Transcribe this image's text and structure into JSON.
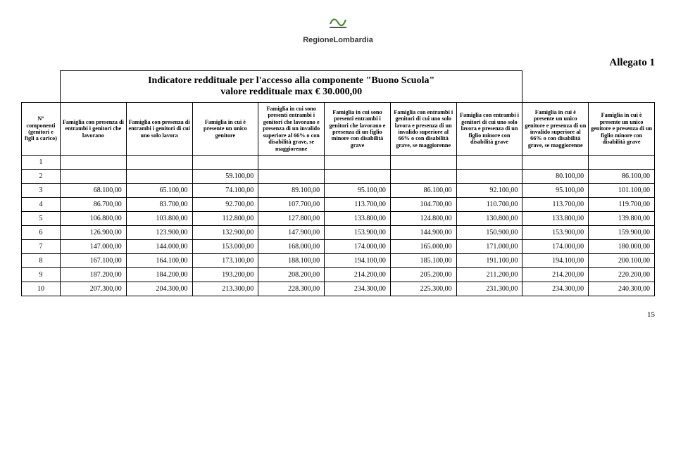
{
  "logo_text": "RegioneLombardia",
  "allegato": "Allegato 1",
  "title_line1": "Indicatore reddituale per l'accesso alla componente \"Buono Scuola\"",
  "title_line2": "valore reddituale max € 30.000,00",
  "page_number": "15",
  "headers": [
    "N° componenti (genitori e figli a carico)",
    "Famiglia con presenza di entrambi i genitori che lavorano",
    "Famiglia con presenza di entrambi i genitori di cui uno solo lavora",
    "Famiglia in cui è presente un unico genitore",
    "Famiglia in cui sono presenti entrambi i genitori che lavorano e presenza di un invalido superiore al 66% o con disabilità grave, se maggiorenne",
    "Famiglia in cui sono presenti entrambi i genitori che lavorano e presenza di un figlio minore con disabilità grave",
    "Famiglia con entrambi i genitori di cui uno solo lavora e presenza di un invalido superiore al 66% o con disabilità grave, se maggiorenne",
    "Famiglia con entrambi i genitori di cui uno solo lavora e presenza di un figlio minore con disabilità grave",
    "Famiglia in cui è presente un unico genitore e presenza di un invalido superiore al 66% o con disabilità grave, se maggiorenne",
    "Famiglia in cui è presente un unico genitore e presenza di un figlio minore con disabilità grave"
  ],
  "rows": [
    {
      "n": "1",
      "v": [
        "",
        "",
        "",
        "",
        "",
        "",
        "",
        "",
        ""
      ]
    },
    {
      "n": "2",
      "v": [
        "",
        "",
        "59.100,00",
        "",
        "",
        "",
        "",
        "80.100,00",
        "86.100,00"
      ]
    },
    {
      "n": "3",
      "v": [
        "68.100,00",
        "65.100,00",
        "74.100,00",
        "89.100,00",
        "95.100,00",
        "86.100,00",
        "92.100,00",
        "95.100,00",
        "101.100,00"
      ]
    },
    {
      "n": "4",
      "v": [
        "86.700,00",
        "83.700,00",
        "92.700,00",
        "107.700,00",
        "113.700,00",
        "104.700,00",
        "110.700,00",
        "113.700,00",
        "119.700,00"
      ]
    },
    {
      "n": "5",
      "v": [
        "106.800,00",
        "103.800,00",
        "112.800,00",
        "127.800,00",
        "133.800,00",
        "124.800,00",
        "130.800,00",
        "133.800,00",
        "139.800,00"
      ]
    },
    {
      "n": "6",
      "v": [
        "126.900,00",
        "123.900,00",
        "132.900,00",
        "147.900,00",
        "153.900,00",
        "144.900,00",
        "150.900,00",
        "153.900,00",
        "159.900,00"
      ]
    },
    {
      "n": "7",
      "v": [
        "147.000,00",
        "144.000,00",
        "153.000,00",
        "168.000,00",
        "174.000,00",
        "165.000,00",
        "171.000,00",
        "174.000,00",
        "180.000,00"
      ]
    },
    {
      "n": "8",
      "v": [
        "167.100,00",
        "164.100,00",
        "173.100,00",
        "188.100,00",
        "194.100,00",
        "185.100,00",
        "191.100,00",
        "194.100,00",
        "200.100,00"
      ]
    },
    {
      "n": "9",
      "v": [
        "187.200,00",
        "184.200,00",
        "193.200,00",
        "208.200,00",
        "214.200,00",
        "205.200,00",
        "211.200,00",
        "214.200,00",
        "220.200,00"
      ]
    },
    {
      "n": "10",
      "v": [
        "207.300,00",
        "204.300,00",
        "213.300,00",
        "228.300,00",
        "234.300,00",
        "225.300,00",
        "231.300,00",
        "234.300,00",
        "240.300,00"
      ]
    }
  ],
  "colors": {
    "logo_green": "#4a8a3a",
    "logo_gray": "#555555",
    "border": "#000000",
    "bg": "#ffffff",
    "text": "#000000"
  }
}
